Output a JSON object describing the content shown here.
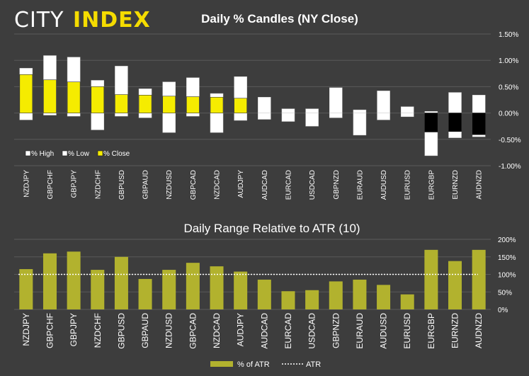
{
  "brand": {
    "part1": "CITY",
    "part2": "INDEX"
  },
  "colors": {
    "background": "#3d3d3d",
    "close": "#f5ec00",
    "atr_bar": "#b2b22e",
    "box": "#ffffff",
    "grid": "#5a5a5a"
  },
  "chart_data": [
    {
      "type": "bar",
      "title": "Daily % Candles (NY Close)",
      "categories": [
        "NZDJPY",
        "GBPCHF",
        "GBPJPY",
        "NZDCHF",
        "GBPUSD",
        "GBPAUD",
        "NZDUSD",
        "GBPCAD",
        "NZDCAD",
        "AUDJPY",
        "AUDCAD",
        "EURCAD",
        "USDCAD",
        "GBPNZD",
        "EURAUD",
        "AUDUSD",
        "EURUSD",
        "EURGBP",
        "EURNZD",
        "AUDNZD"
      ],
      "series": [
        {
          "name": "% High",
          "values": [
            0.85,
            1.09,
            1.06,
            0.62,
            0.89,
            0.46,
            0.59,
            0.67,
            0.37,
            0.69,
            0.3,
            0.08,
            0.08,
            0.48,
            0.06,
            0.42,
            0.12,
            0.03,
            0.39,
            0.34
          ]
        },
        {
          "name": "% Low",
          "values": [
            -0.13,
            -0.04,
            -0.06,
            -0.32,
            -0.06,
            -0.09,
            -0.37,
            -0.06,
            -0.37,
            -0.14,
            -0.12,
            -0.16,
            -0.25,
            -0.09,
            -0.42,
            -0.13,
            -0.07,
            -0.81,
            -0.47,
            -0.45
          ]
        },
        {
          "name": "% Close",
          "values": [
            0.73,
            0.63,
            0.59,
            0.5,
            0.35,
            0.34,
            0.32,
            0.31,
            0.3,
            0.28,
            0.0,
            0.0,
            0.0,
            0.0,
            0.0,
            0.0,
            0.0,
            -0.36,
            -0.35,
            -0.41
          ]
        }
      ],
      "ylim": [
        -1.0,
        1.5
      ],
      "yticks": [
        "1.50%",
        "1.00%",
        "0.50%",
        "0.00%",
        "-0.50%",
        "-1.00%"
      ],
      "ytick_values": [
        1.5,
        1.0,
        0.5,
        0.0,
        -0.5,
        -1.0
      ],
      "legend": [
        "% High",
        "% Low",
        "% Close"
      ],
      "legend_position": "bottom-left"
    },
    {
      "type": "bar",
      "title": "Daily Range Relative to ATR (10)",
      "categories": [
        "NZDJPY",
        "GBPCHF",
        "GBPJPY",
        "NZDCHF",
        "GBPUSD",
        "GBPAUD",
        "NZDUSD",
        "GBPCAD",
        "NZDCAD",
        "AUDJPY",
        "AUDCAD",
        "EURCAD",
        "USDCAD",
        "GBPNZD",
        "EURAUD",
        "AUDUSD",
        "EURUSD",
        "EURGBP",
        "EURNZD",
        "AUDNZD"
      ],
      "series": [
        {
          "name": "% of ATR",
          "values": [
            115,
            160,
            165,
            113,
            150,
            87,
            113,
            133,
            123,
            108,
            85,
            52,
            55,
            80,
            85,
            70,
            43,
            170,
            138,
            170
          ]
        }
      ],
      "reference_line": {
        "name": "ATR",
        "value": 100
      },
      "ylim": [
        0,
        200
      ],
      "yticks": [
        "200%",
        "150%",
        "100%",
        "50%",
        "0%"
      ],
      "ytick_values": [
        200,
        150,
        100,
        50,
        0
      ],
      "legend": [
        "% of ATR",
        "ATR"
      ],
      "legend_position": "bottom"
    }
  ]
}
